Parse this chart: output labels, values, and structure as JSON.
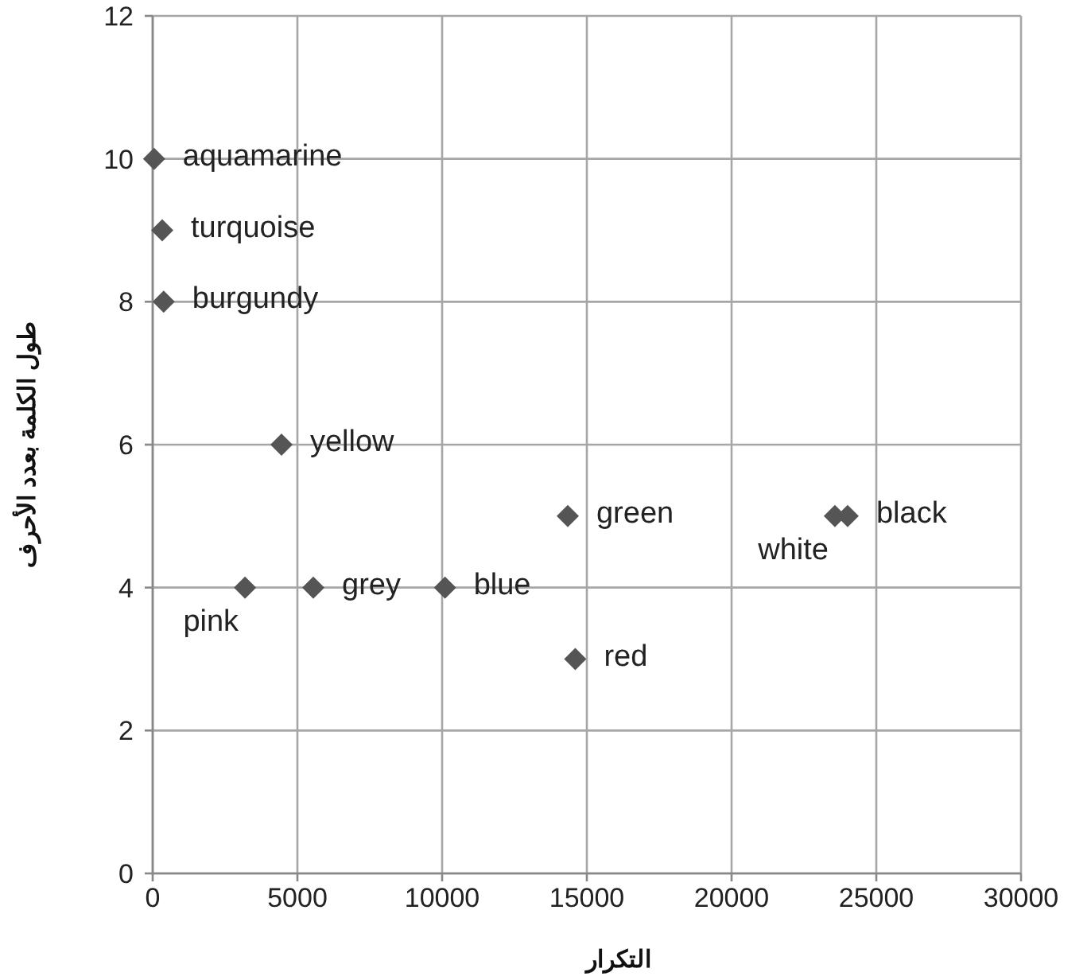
{
  "chart_data": {
    "type": "scatter",
    "xlabel": "التكرار",
    "ylabel": "طول الكلمة بعدد الأحرف",
    "xlim": [
      0,
      30000
    ],
    "xticks": [
      0,
      5000,
      10000,
      15000,
      20000,
      25000,
      30000
    ],
    "ylim": [
      0,
      12
    ],
    "yticks": [
      0,
      2,
      4,
      6,
      8,
      10,
      12
    ],
    "grid": true,
    "marker": "diamond",
    "x": [
      50,
      330,
      380,
      4450,
      3190,
      5550,
      10100,
      14340,
      14600,
      23570,
      24010
    ],
    "series": [
      {
        "color": "#555555",
        "values": [
          10,
          9,
          8,
          6,
          4,
          4,
          4,
          5,
          3,
          5,
          5
        ]
      }
    ],
    "annotations": [
      {
        "text": "aquamarine",
        "x": 50,
        "y": 10
      },
      {
        "text": "turquoise",
        "x": 330,
        "y": 9
      },
      {
        "text": "burgundy",
        "x": 380,
        "y": 8
      },
      {
        "text": "yellow",
        "x": 4450,
        "y": 6
      },
      {
        "text": "pink",
        "x": 3190,
        "y": 4
      },
      {
        "text": "grey",
        "x": 5550,
        "y": 4
      },
      {
        "text": "blue",
        "x": 10100,
        "y": 4
      },
      {
        "text": "green",
        "x": 14340,
        "y": 5
      },
      {
        "text": "red",
        "x": 14600,
        "y": 3
      },
      {
        "text": "white",
        "x": 23570,
        "y": 5
      },
      {
        "text": "black",
        "x": 24010,
        "y": 5
      }
    ]
  }
}
